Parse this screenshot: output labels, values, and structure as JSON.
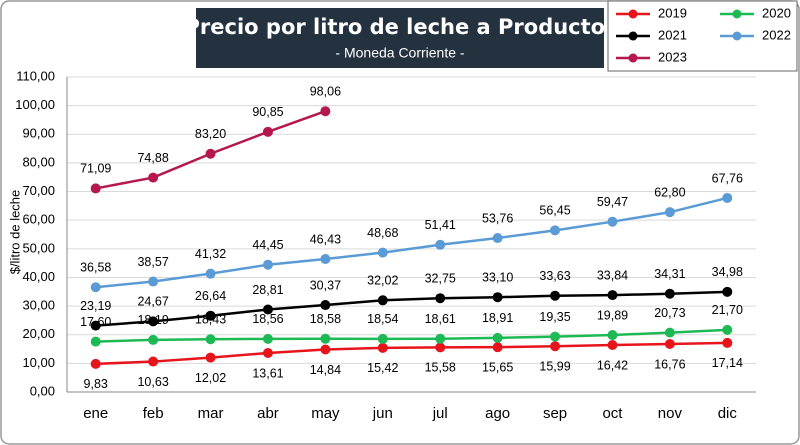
{
  "chart_data": {
    "type": "line",
    "title": "Precio por litro de leche a Productor",
    "subtitle": "- Moneda Corriente -",
    "y_label": "$/litro de leche",
    "categories": [
      "ene",
      "feb",
      "mar",
      "abr",
      "may",
      "jun",
      "jul",
      "ago",
      "sep",
      "oct",
      "nov",
      "dic"
    ],
    "series": [
      {
        "name": "2019",
        "color": "#e8141b",
        "values": [
          9.83,
          10.63,
          12.02,
          13.61,
          14.84,
          15.42,
          15.58,
          15.65,
          15.99,
          16.42,
          16.76,
          17.14
        ],
        "value_labels": [
          "9,83",
          "10,63",
          "12,02",
          "13,61",
          "14,84",
          "15,42",
          "15,58",
          "15,65",
          "15,99",
          "16,42",
          "16,76",
          "17,14"
        ]
      },
      {
        "name": "2020",
        "color": "#1db954",
        "values": [
          17.6,
          18.19,
          18.43,
          18.56,
          18.58,
          18.54,
          18.61,
          18.91,
          19.35,
          19.89,
          20.73,
          21.7
        ],
        "value_labels": [
          "17,60",
          "18,19",
          "18,43",
          "18,56",
          "18,58",
          "18,54",
          "18,61",
          "18,91",
          "19,35",
          "19,89",
          "20,73",
          "21,70"
        ]
      },
      {
        "name": "2021",
        "color": "#000000",
        "values": [
          23.19,
          24.67,
          26.64,
          28.81,
          30.37,
          32.02,
          32.75,
          33.1,
          33.63,
          33.84,
          34.31,
          34.98
        ],
        "value_labels": [
          "23,19",
          "24,67",
          "26,64",
          "28,81",
          "30,37",
          "32,02",
          "32,75",
          "33,10",
          "33,63",
          "33,84",
          "34,31",
          "34,98"
        ]
      },
      {
        "name": "2022",
        "color": "#5b9bd5",
        "values": [
          36.58,
          38.57,
          41.32,
          44.45,
          46.43,
          48.68,
          51.41,
          53.76,
          56.45,
          59.47,
          62.8,
          67.76
        ],
        "value_labels": [
          "36,58",
          "38,57",
          "41,32",
          "44,45",
          "46,43",
          "48,68",
          "51,41",
          "53,76",
          "56,45",
          "59,47",
          "62,80",
          "67,76"
        ]
      },
      {
        "name": "2023",
        "color": "#b5174f",
        "values": [
          71.09,
          74.88,
          83.2,
          90.85,
          98.06,
          null,
          null,
          null,
          null,
          null,
          null,
          null
        ],
        "value_labels": [
          "71,09",
          "74,88",
          "83,20",
          "90,85",
          "98,06",
          null,
          null,
          null,
          null,
          null,
          null,
          null
        ]
      }
    ],
    "ylim": [
      0,
      110
    ],
    "yticks": [
      {
        "value": 0,
        "label": "0,00"
      },
      {
        "value": 10,
        "label": "10,00"
      },
      {
        "value": 20,
        "label": "20,00"
      },
      {
        "value": 30,
        "label": "30,00"
      },
      {
        "value": 40,
        "label": "40,00"
      },
      {
        "value": 50,
        "label": "50,00"
      },
      {
        "value": 60,
        "label": "60,00"
      },
      {
        "value": 70,
        "label": "70,00"
      },
      {
        "value": 80,
        "label": "80,00"
      },
      {
        "value": 90,
        "label": "90,00"
      },
      {
        "value": 100,
        "label": "100,00"
      },
      {
        "value": 110,
        "label": "110,00"
      }
    ],
    "grid": true
  }
}
